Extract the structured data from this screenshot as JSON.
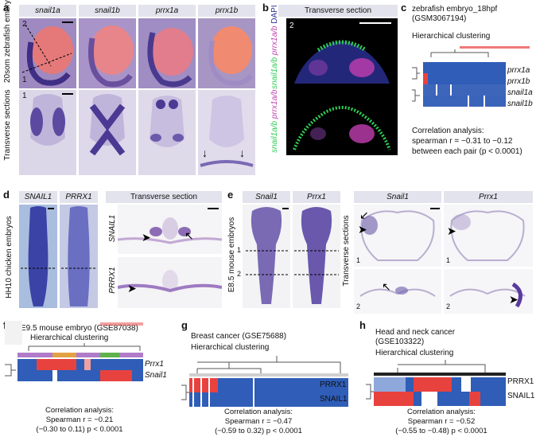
{
  "panel_letters": [
    "a",
    "b",
    "c",
    "d",
    "e",
    "f",
    "g",
    "h"
  ],
  "a": {
    "headers": [
      "snail1a",
      "snail1b",
      "prrx1a",
      "prrx1b"
    ],
    "row_label_top": "20som zebrafish embryos",
    "row_label_bottom": "Transverse sections",
    "plane_marks": [
      "2",
      "1"
    ],
    "section_number": "1"
  },
  "b": {
    "header": "Transverse section",
    "section_number": "2",
    "stain_top": [
      "snail1a/b",
      "prrx1a/b",
      "DAPI"
    ],
    "stain_bottom": [
      "snail1a/b",
      "prrx1a/b"
    ]
  },
  "c": {
    "title_line1": "zebrafish embryo_18hpf",
    "title_line2": "(GSM3067194)",
    "subtitle": "Hierarchical clustering",
    "genes": [
      "prrx1a",
      "prrx1b",
      "snail1a",
      "snail1b"
    ],
    "stat_lines": [
      "Correlation analysis:",
      "spearman r = −0.31 to −0.12",
      "between each pair (p < 0.0001)"
    ]
  },
  "d": {
    "headers": [
      "SNAIL1",
      "PRRX1"
    ],
    "section_header": "Transverse section",
    "row_label": "HH10 chicken embryos",
    "section_genes": [
      "SNAIL1",
      "PRRX1"
    ]
  },
  "e": {
    "headers": [
      "Snail1",
      "Prrx1"
    ],
    "section_headers": [
      "Snail1",
      "Prrx1"
    ],
    "row_label": "E8.5 mouse embryos",
    "side_label": "Transverse sections",
    "plane_marks": [
      "1",
      "2"
    ],
    "section_numbers": [
      "1",
      "1",
      "2",
      "2"
    ]
  },
  "f": {
    "title": "E9.5 mouse embryo (GSE87038)",
    "subtitle": "Hierarchical clustering",
    "genes": [
      "Prrx1",
      "Snail1"
    ],
    "stat_lines": [
      "Correlation analysis:",
      "Spearman r = −0.21",
      "(−0.30 to 0.11) p < 0.0001"
    ]
  },
  "g": {
    "title": "Breast cancer (GSE75688)",
    "subtitle": "Hierarchical clustering",
    "genes": [
      "PRRX1",
      "SNAIL1"
    ],
    "stat_lines": [
      "Correlation analysis:",
      "Spearman r = −0.47",
      "(−0.59 to 0.32) p < 0.0001"
    ]
  },
  "h": {
    "title_line1": "Head and neck cancer",
    "title_line2": "(GSE103322)",
    "subtitle": "Hierarchical clustering",
    "genes": [
      "PRRX1",
      "SNAIL1"
    ],
    "stat_lines": [
      "Correlation analysis:",
      "Spearman r = −0.52",
      "(−0.55 to −0.48) p < 0.0001"
    ]
  },
  "colors": {
    "header_bg": "#e3e3ed",
    "heat_blue": "#2f5db7",
    "heat_red": "#e8423f",
    "heat_white": "#ffffff",
    "stain_purple": "#3c2f8c",
    "dapi_blue": "#2a2f8f",
    "snail_green": "#2ecc52",
    "prrx_magenta": "#c23fb0"
  }
}
